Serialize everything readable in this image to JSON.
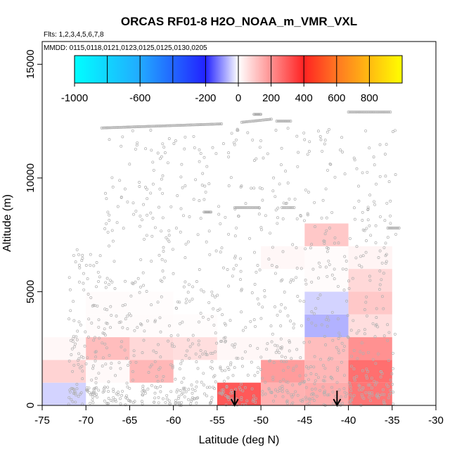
{
  "chart_data": {
    "type": "heatmap",
    "title": "ORCAS RF01-8 H2O_NOAA_m_VMR_VXL",
    "subtitle_flights": "Flts: 1,2,3,4,5,6,7,8",
    "subtitle_dates": "MMDD: 0115,0118,0121,0123,0125,0125,0130,0205",
    "xlabel": "Latitude (deg N)",
    "ylabel": "Altitude (m)",
    "xlim": [
      -75,
      -30
    ],
    "ylim": [
      0,
      16000
    ],
    "x_ticks": [
      -75,
      -70,
      -65,
      -60,
      -55,
      -50,
      -45,
      -40,
      -35,
      -30
    ],
    "y_ticks": [
      0,
      5000,
      10000,
      15000
    ],
    "colorbar": {
      "range": [
        -1000,
        1000
      ],
      "tick_values": [
        -1000,
        -600,
        -200,
        0,
        200,
        400,
        600,
        800
      ],
      "tick_labels": [
        "-1000",
        "-600",
        "-200",
        "0",
        "200",
        "400",
        "600",
        "800"
      ]
    },
    "cell_size": {
      "dlat": 5,
      "dalt": 1000
    },
    "cells": [
      {
        "lat": -75,
        "alt": 0,
        "value": -40
      },
      {
        "lat": -75,
        "alt": 1000,
        "value": 80
      },
      {
        "lat": -75,
        "alt": 2000,
        "value": 15
      },
      {
        "lat": -70,
        "alt": 1000,
        "value": 10
      },
      {
        "lat": -70,
        "alt": 2000,
        "value": 120
      },
      {
        "lat": -70,
        "alt": 3000,
        "value": 8
      },
      {
        "lat": -70,
        "alt": 4000,
        "value": 8
      },
      {
        "lat": -65,
        "alt": 1000,
        "value": 130
      },
      {
        "lat": -65,
        "alt": 2000,
        "value": 70
      },
      {
        "lat": -65,
        "alt": 3000,
        "value": 8
      },
      {
        "lat": -65,
        "alt": 4000,
        "value": 5
      },
      {
        "lat": -60,
        "alt": 2000,
        "value": 60
      },
      {
        "lat": -60,
        "alt": 3000,
        "value": 5
      },
      {
        "lat": -55,
        "alt": 0,
        "value": 300
      },
      {
        "lat": -55,
        "alt": 2000,
        "value": 15
      },
      {
        "lat": -50,
        "alt": 0,
        "value": 140
      },
      {
        "lat": -50,
        "alt": 1000,
        "value": 180
      },
      {
        "lat": -50,
        "alt": 2000,
        "value": 15
      },
      {
        "lat": -50,
        "alt": 6000,
        "value": 15
      },
      {
        "lat": -45,
        "alt": 0,
        "value": 150
      },
      {
        "lat": -45,
        "alt": 1000,
        "value": 130
      },
      {
        "lat": -45,
        "alt": 2000,
        "value": 120
      },
      {
        "lat": -45,
        "alt": 3000,
        "value": -70
      },
      {
        "lat": -45,
        "alt": 4000,
        "value": -40
      },
      {
        "lat": -45,
        "alt": 5000,
        "value": 8
      },
      {
        "lat": -45,
        "alt": 6000,
        "value": 8
      },
      {
        "lat": -45,
        "alt": 7000,
        "value": 100
      },
      {
        "lat": -40,
        "alt": 0,
        "value": 250
      },
      {
        "lat": -40,
        "alt": 1000,
        "value": 260
      },
      {
        "lat": -40,
        "alt": 2000,
        "value": 200
      },
      {
        "lat": -40,
        "alt": 3000,
        "value": 60
      },
      {
        "lat": -40,
        "alt": 4000,
        "value": 100
      },
      {
        "lat": -40,
        "alt": 5000,
        "value": 70
      },
      {
        "lat": -40,
        "alt": 6000,
        "value": 20
      }
    ],
    "arrows": [
      {
        "lat": -53
      },
      {
        "lat": -41.3
      }
    ],
    "flight_tracks": [
      {
        "alt": 12200,
        "lat": [
          -68.2,
          -54.5
        ],
        "slope": 13
      },
      {
        "alt": 12450,
        "lat": [
          -52.2,
          -48.8
        ],
        "slope": 40
      },
      {
        "alt": 12500,
        "lat": [
          -48.2,
          -46.6
        ],
        "slope": 0
      },
      {
        "alt": 12900,
        "lat": [
          -40,
          -35.2
        ],
        "slope": 0
      },
      {
        "alt": 8700,
        "lat": [
          -53,
          -50.2
        ],
        "slope": 0
      },
      {
        "alt": 8700,
        "lat": [
          -47.6,
          -46.2
        ],
        "slope": 0
      },
      {
        "alt": 8500,
        "lat": [
          -56.5,
          -55.7
        ],
        "slope": 0
      },
      {
        "alt": 7800,
        "lat": [
          -35.5,
          -34.2
        ],
        "slope": 0
      },
      {
        "alt": 12800,
        "lat": [
          -50.8,
          -50
        ],
        "slope": 0
      }
    ],
    "scatter_count": 1200
  }
}
